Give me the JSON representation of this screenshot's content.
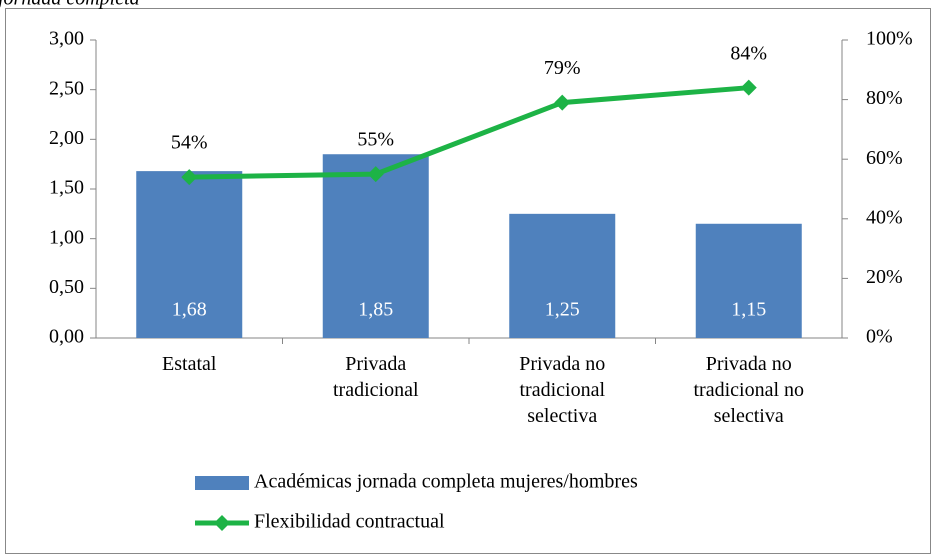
{
  "chart_data": {
    "type": "bar_line",
    "title": "jornada completa",
    "categories": [
      "Estatal",
      "Privada\ntradicional",
      "Privada no\ntradicional\nselectiva",
      "Privada no\ntradicional no\nselectiva"
    ],
    "series": [
      {
        "name": "Académicas jornada completa mujeres/hombres",
        "type": "bar",
        "color": "#4f81bd",
        "values": [
          1.68,
          1.85,
          1.25,
          1.15
        ],
        "value_labels": [
          "1,68",
          "1,85",
          "1,25",
          "1,15"
        ]
      },
      {
        "name": "Flexibilidad contractual",
        "type": "line",
        "axis": "y2",
        "color": "#1db346",
        "values": [
          54,
          55,
          79,
          84
        ],
        "value_labels": [
          "54%",
          "55%",
          "79%",
          "84%"
        ]
      }
    ],
    "ylim": [
      0,
      3
    ],
    "yticks": [
      {
        "value": 0,
        "label": "0,00"
      },
      {
        "value": 0.5,
        "label": "0,50"
      },
      {
        "value": 1,
        "label": "1,00"
      },
      {
        "value": 1.5,
        "label": "1,50"
      },
      {
        "value": 2,
        "label": "2,00"
      },
      {
        "value": 2.5,
        "label": "2,50"
      },
      {
        "value": 3,
        "label": "3,00"
      }
    ],
    "y2lim": [
      0,
      100
    ],
    "y2ticks": [
      {
        "value": 0,
        "label": "0%"
      },
      {
        "value": 20,
        "label": "20%"
      },
      {
        "value": 40,
        "label": "40%"
      },
      {
        "value": 60,
        "label": "60%"
      },
      {
        "value": 80,
        "label": "80%"
      },
      {
        "value": 100,
        "label": "100%"
      }
    ]
  }
}
